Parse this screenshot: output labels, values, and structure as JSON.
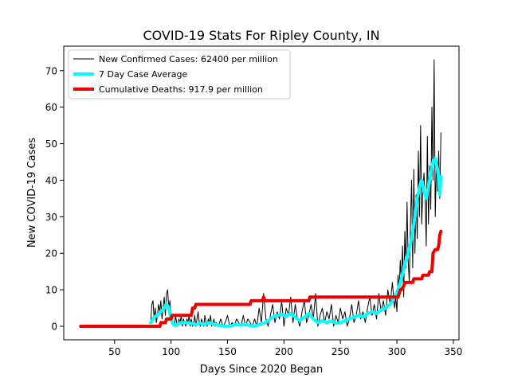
{
  "chart_data": {
    "type": "line",
    "title": "COVID-19 Stats For Ripley County, IN",
    "xlabel": "Days Since 2020 Began",
    "ylabel": "New COVID-19 Cases",
    "xlim": [
      5,
      355
    ],
    "ylim": [
      -3.7,
      76.7
    ],
    "x_ticks": [
      50,
      100,
      150,
      200,
      250,
      300,
      350
    ],
    "y_ticks": [
      0,
      10,
      20,
      30,
      40,
      50,
      60,
      70
    ],
    "grid": false,
    "legend_position": "top-left",
    "series": [
      {
        "name": "New Confirmed Cases: 62400 per million",
        "color": "#000000",
        "line_width": 1,
        "x": [
          82,
          83,
          84,
          85,
          86,
          87,
          88,
          89,
          90,
          91,
          92,
          93,
          94,
          95,
          96,
          97,
          98,
          99,
          100,
          101,
          102,
          103,
          104,
          105,
          106,
          107,
          108,
          109,
          110,
          111,
          112,
          113,
          114,
          115,
          116,
          117,
          118,
          119,
          120,
          121,
          122,
          123,
          124,
          125,
          126,
          127,
          128,
          129,
          130,
          131,
          132,
          133,
          134,
          135,
          136,
          137,
          138,
          139,
          140,
          142,
          144,
          146,
          148,
          150,
          152,
          154,
          156,
          158,
          160,
          162,
          164,
          166,
          168,
          170,
          172,
          174,
          176,
          178,
          180,
          182,
          184,
          186,
          188,
          190,
          192,
          194,
          196,
          198,
          200,
          202,
          204,
          206,
          208,
          210,
          212,
          214,
          216,
          218,
          220,
          222,
          224,
          226,
          228,
          230,
          232,
          234,
          236,
          238,
          240,
          242,
          244,
          246,
          248,
          250,
          252,
          254,
          256,
          258,
          260,
          262,
          264,
          266,
          268,
          270,
          272,
          274,
          276,
          278,
          280,
          282,
          284,
          286,
          288,
          290,
          292,
          294,
          296,
          298,
          299,
          300,
          301,
          302,
          303,
          304,
          305,
          306,
          307,
          308,
          309,
          310,
          311,
          312,
          313,
          314,
          315,
          316,
          317,
          318,
          319,
          320,
          321,
          322,
          323,
          324,
          325,
          326,
          327,
          328,
          329,
          330,
          331,
          332,
          333,
          334,
          335,
          336,
          337,
          338,
          339
        ],
        "y": [
          1,
          6,
          7,
          2,
          5,
          1,
          3,
          6,
          4,
          7,
          2,
          5,
          8,
          3,
          9,
          10,
          5,
          7,
          3,
          2,
          1,
          0,
          3,
          1,
          0,
          2,
          1,
          3,
          0,
          2,
          1,
          0,
          2,
          1,
          3,
          0,
          2,
          0,
          1,
          3,
          0,
          2,
          4,
          1,
          0,
          2,
          1,
          0,
          3,
          1,
          0,
          2,
          1,
          3,
          0,
          1,
          2,
          0,
          1,
          0,
          2,
          0,
          1,
          3,
          0,
          1,
          0,
          2,
          1,
          0,
          3,
          0,
          2,
          1,
          0,
          2,
          0,
          5,
          1,
          9,
          2,
          0,
          3,
          6,
          1,
          4,
          2,
          7,
          0,
          5,
          3,
          8,
          1,
          6,
          2,
          0,
          4,
          7,
          1,
          3,
          6,
          2,
          9,
          0,
          3,
          5,
          1,
          4,
          2,
          6,
          0,
          3,
          1,
          5,
          2,
          4,
          0,
          2,
          6,
          1,
          3,
          7,
          2,
          4,
          1,
          5,
          8,
          3,
          6,
          2,
          9,
          4,
          7,
          3,
          10,
          6,
          12,
          5,
          8,
          4,
          14,
          10,
          18,
          12,
          22,
          8,
          26,
          16,
          34,
          18,
          12,
          28,
          40,
          16,
          43,
          20,
          36,
          24,
          48,
          30,
          55,
          28,
          38,
          42,
          35,
          22,
          52,
          28,
          44,
          32,
          60,
          40,
          73,
          30,
          45,
          37,
          48,
          35,
          53
        ]
      },
      {
        "name": "7 Day Case Average",
        "color": "#00ffff",
        "line_width": 4,
        "x": [
          82,
          85,
          88,
          91,
          94,
          96,
          98,
          100,
          102,
          104,
          106,
          108,
          110,
          114,
          118,
          122,
          126,
          130,
          134,
          138,
          142,
          146,
          150,
          154,
          158,
          162,
          166,
          170,
          174,
          178,
          182,
          186,
          190,
          194,
          198,
          202,
          206,
          210,
          214,
          218,
          222,
          226,
          230,
          234,
          238,
          242,
          246,
          250,
          254,
          258,
          262,
          266,
          270,
          274,
          278,
          282,
          286,
          290,
          294,
          298,
          301,
          304,
          307,
          310,
          313,
          316,
          318,
          320,
          322,
          324,
          326,
          328,
          330,
          332,
          334,
          336,
          337,
          338,
          339
        ],
        "y": [
          1,
          2.5,
          3,
          4,
          5,
          6.2,
          5,
          2,
          0.5,
          0.2,
          0.5,
          1,
          1,
          1,
          0.8,
          0.5,
          0.8,
          0.5,
          1,
          0.5,
          0.3,
          0.1,
          0,
          0.2,
          0.5,
          0.3,
          0.5,
          0.2,
          0,
          0.5,
          0.8,
          1.5,
          2.5,
          3,
          3.2,
          2.8,
          3.5,
          2.5,
          1.5,
          2.5,
          3.5,
          2,
          1,
          1.5,
          1,
          1.5,
          0.8,
          1,
          1.5,
          2,
          2.5,
          3,
          2.5,
          3.5,
          4,
          3.5,
          4.5,
          5,
          6,
          8,
          10,
          13,
          17,
          20,
          24,
          30,
          35,
          38,
          40,
          37,
          35,
          38,
          42,
          45,
          46,
          43,
          40,
          36,
          41
        ]
      },
      {
        "name": "Cumulative Deaths: 917.9 per million",
        "color": "#ee0000",
        "line_width": 4,
        "x": [
          20,
          90,
          91,
          95,
          96,
          100,
          101,
          112,
          113,
          118,
          119,
          121,
          122,
          170,
          171,
          181,
          182,
          183,
          184,
          222,
          223,
          301,
          302,
          303,
          304,
          306,
          307,
          314,
          315,
          322,
          323,
          325,
          326,
          328,
          329,
          331,
          332,
          334,
          335,
          336,
          337,
          338,
          339
        ],
        "y": [
          0,
          0,
          1,
          1,
          2,
          2,
          3,
          3,
          3,
          3,
          5,
          5,
          6,
          6,
          7,
          7,
          8,
          7,
          7,
          7,
          8,
          8,
          9,
          10,
          10,
          11,
          12,
          12,
          13,
          13,
          14,
          14,
          14,
          14,
          15,
          15,
          20,
          21,
          21,
          21,
          22,
          25,
          26
        ]
      }
    ]
  }
}
